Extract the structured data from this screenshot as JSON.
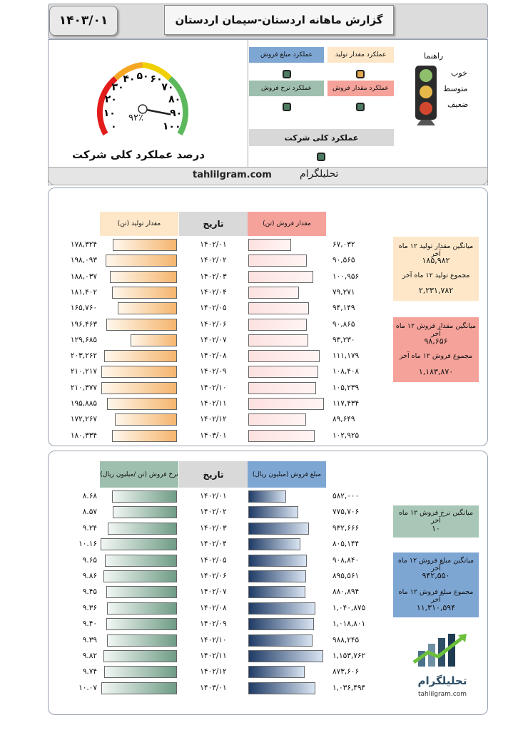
{
  "header": {
    "date": "۱۴۰۳/۰۱",
    "title": "گزارش ماهانه اردستان-سیمان اردستان"
  },
  "gauge": {
    "ticks": [
      "۰",
      "۱۰",
      "۲۰",
      "۳۰",
      "۴۰",
      "۵۰",
      "۶۰",
      "۷۰",
      "۸۰",
      "۹۰",
      "۱۰۰"
    ],
    "value_text": "۹۲٪",
    "value": 92,
    "caption": "درصد عملکرد کلی شرکت",
    "colors": {
      "red": "#e21b1b",
      "orange": "#f5a623",
      "yellow": "#f0d000",
      "green": "#5cb85c"
    }
  },
  "indicators": {
    "sales_amount": "عملکرد مبلغ فروش",
    "production": "عملکرد مقدار تولید",
    "sales_rate": "عملکرد نرخ فروش",
    "sales_qty": "عملکرد مقدار فروش",
    "overall": "عملکرد کلی شرکت"
  },
  "legend": {
    "title": "راهنما",
    "good": "خوب",
    "medium": "متوسط",
    "weak": "ضعیف"
  },
  "brand": {
    "url": "tahlilgram.com",
    "name": "تحلیلگرام"
  },
  "table1": {
    "col_production": "مقدار تولید (تن)",
    "col_date": "تاریخ",
    "col_sales": "مقدار فروش (تن)",
    "rows": [
      {
        "prod": "۱۷۸,۳۲۴",
        "date": "۱۴۰۲/۰۱",
        "sales": "۶۷,۰۳۲",
        "p": 178324,
        "s": 67032
      },
      {
        "prod": "۱۹۸,۰۹۳",
        "date": "۱۴۰۲/۰۲",
        "sales": "۹۰,۵۶۵",
        "p": 198093,
        "s": 90565
      },
      {
        "prod": "۱۸۸,۰۳۷",
        "date": "۱۴۰۲/۰۳",
        "sales": "۱۰۰,۹۵۶",
        "p": 188037,
        "s": 100956
      },
      {
        "prod": "۱۸۱,۴۰۲",
        "date": "۱۴۰۲/۰۴",
        "sales": "۷۹,۲۷۱",
        "p": 181402,
        "s": 79271
      },
      {
        "prod": "۱۶۵,۷۶۰",
        "date": "۱۴۰۲/۰۵",
        "sales": "۹۴,۱۴۹",
        "p": 165760,
        "s": 94149
      },
      {
        "prod": "۱۹۶,۴۶۳",
        "date": "۱۴۰۲/۰۶",
        "sales": "۹۰,۸۶۵",
        "p": 196463,
        "s": 90865
      },
      {
        "prod": "۱۲۹,۶۸۵",
        "date": "۱۴۰۲/۰۷",
        "sales": "۹۳,۲۳۰",
        "p": 129685,
        "s": 93230
      },
      {
        "prod": "۲۰۳,۲۶۲",
        "date": "۱۴۰۲/۰۸",
        "sales": "۱۱۱,۱۷۹",
        "p": 203262,
        "s": 111179
      },
      {
        "prod": "۲۱۰,۲۱۷",
        "date": "۱۴۰۲/۰۹",
        "sales": "۱۰۸,۴۰۸",
        "p": 210217,
        "s": 108408
      },
      {
        "prod": "۲۱۰,۳۷۷",
        "date": "۱۴۰۲/۱۰",
        "sales": "۱۰۵,۲۳۹",
        "p": 210377,
        "s": 105239
      },
      {
        "prod": "۱۹۵,۸۸۵",
        "date": "۱۴۰۲/۱۱",
        "sales": "۱۱۷,۴۳۴",
        "p": 195885,
        "s": 117434
      },
      {
        "prod": "۱۷۲,۲۶۷",
        "date": "۱۴۰۲/۱۲",
        "sales": "۸۹,۶۴۹",
        "p": 172267,
        "s": 89649
      },
      {
        "prod": "۱۸۰,۳۳۴",
        "date": "۱۴۰۳/۰۱",
        "sales": "۱۰۲,۹۲۵",
        "p": 180334,
        "s": 102925
      }
    ],
    "prod_max": 215000,
    "sales_max": 120000,
    "side": {
      "avg_prod_label": "میانگین مقدار تولید ۱۲ ماه آخر",
      "avg_prod": "۱۸۵,۹۸۲",
      "sum_prod_label": "مجموع تولید ۱۲ ماه آخر",
      "sum_prod": "۲,۲۳۱,۷۸۲",
      "avg_sales_label": "میانگین مقدار فروش ۱۲ ماه آخر",
      "avg_sales": "۹۸,۶۵۶",
      "sum_sales_label": "مجموع فروش ۱۲ ماه آخر",
      "sum_sales": "۱,۱۸۳,۸۷۰"
    }
  },
  "table2": {
    "col_rate": "نرخ فروش (تن /میلیون ریال)",
    "col_date": "تاریخ",
    "col_amount": "مبلغ فروش (میلیون ریال)",
    "rows": [
      {
        "rate": "۸.۶۸",
        "date": "۱۴۰۲/۰۱",
        "amount": "۵۸۲,۰۰۰",
        "r": 8.68,
        "a": 582000
      },
      {
        "rate": "۸.۵۷",
        "date": "۱۴۰۲/۰۲",
        "amount": "۷۷۵,۷۰۶",
        "r": 8.57,
        "a": 775706
      },
      {
        "rate": "۹.۲۴",
        "date": "۱۴۰۲/۰۳",
        "amount": "۹۳۲,۶۶۶",
        "r": 9.24,
        "a": 932666
      },
      {
        "rate": "۱۰.۱۶",
        "date": "۱۴۰۲/۰۴",
        "amount": "۸۰۵,۱۴۴",
        "r": 10.16,
        "a": 805144
      },
      {
        "rate": "۹.۶۵",
        "date": "۱۴۰۲/۰۵",
        "amount": "۹۰۸,۸۴۰",
        "r": 9.65,
        "a": 908840
      },
      {
        "rate": "۹.۸۶",
        "date": "۱۴۰۲/۰۶",
        "amount": "۸۹۵,۵۶۱",
        "r": 9.86,
        "a": 895561
      },
      {
        "rate": "۹.۴۵",
        "date": "۱۴۰۲/۰۷",
        "amount": "۸۸۰,۸۹۴",
        "r": 9.45,
        "a": 880894
      },
      {
        "rate": "۹.۳۶",
        "date": "۱۴۰۲/۰۸",
        "amount": "۱,۰۴۰,۸۷۵",
        "r": 9.36,
        "a": 1040875
      },
      {
        "rate": "۹.۴۰",
        "date": "۱۴۰۲/۰۹",
        "amount": "۱,۰۱۸,۸۰۱",
        "r": 9.4,
        "a": 1018801
      },
      {
        "rate": "۹.۳۹",
        "date": "۱۴۰۲/۱۰",
        "amount": "۹۸۸,۲۴۵",
        "r": 9.39,
        "a": 988245
      },
      {
        "rate": "۹.۸۲",
        "date": "۱۴۰۲/۱۱",
        "amount": "۱,۱۵۳,۷۶۲",
        "r": 9.82,
        "a": 1153762
      },
      {
        "rate": "۹.۷۴",
        "date": "۱۴۰۲/۱۲",
        "amount": "۸۷۳,۶۰۶",
        "r": 9.74,
        "a": 873606
      },
      {
        "rate": "۱۰.۰۷",
        "date": "۱۴۰۳/۰۱",
        "amount": "۱,۰۳۶,۴۹۴",
        "r": 10.07,
        "a": 1036494
      }
    ],
    "rate_max": 10.3,
    "amount_max": 1190000,
    "side": {
      "avg_rate_label": "میانگین نرخ فروش ۱۲ ماه آخر",
      "avg_rate": "۱۰",
      "avg_amount_label": "میانگین مبلغ فروش ۱۲ ماه آخر",
      "avg_amount": "۹۴۲,۵۵۰",
      "sum_amount_label": "مجموع مبلغ فروش ۱۲ ماه آخر",
      "sum_amount": "۱۱,۳۱۰,۵۹۴"
    }
  },
  "logo": {
    "name": "تحلیلگرام",
    "url": "tahlilgram.com"
  }
}
